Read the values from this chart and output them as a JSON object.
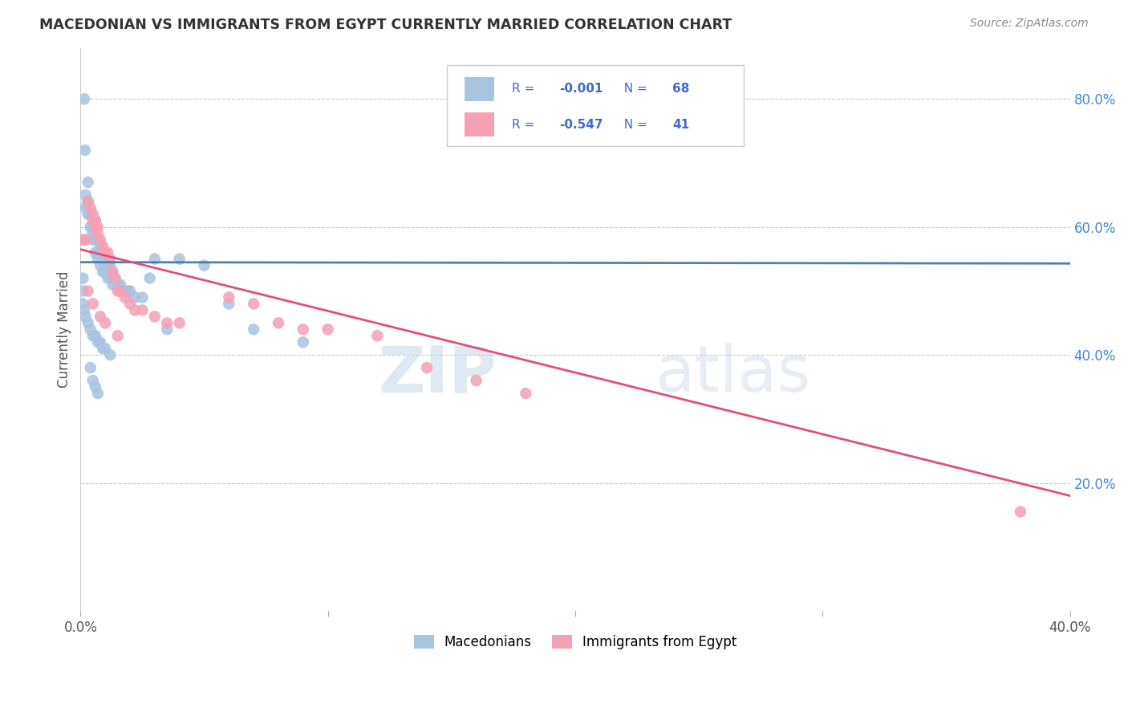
{
  "title": "MACEDONIAN VS IMMIGRANTS FROM EGYPT CURRENTLY MARRIED CORRELATION CHART",
  "source": "Source: ZipAtlas.com",
  "ylabel": "Currently Married",
  "xlim": [
    0.0,
    0.4
  ],
  "ylim": [
    0.0,
    0.88
  ],
  "xtick_pos": [
    0.0,
    0.1,
    0.2,
    0.3,
    0.4
  ],
  "xtick_labels": [
    "0.0%",
    "",
    "",
    "",
    "40.0%"
  ],
  "ytick_positions_right": [
    0.2,
    0.4,
    0.6,
    0.8
  ],
  "ytick_labels_right": [
    "20.0%",
    "40.0%",
    "60.0%",
    "80.0%"
  ],
  "blue_color": "#a8c4e0",
  "pink_color": "#f4a0b5",
  "blue_line_color": "#4a80b8",
  "pink_line_color": "#e05075",
  "legend_label1": "Macedonians",
  "legend_label2": "Immigrants from Egypt",
  "watermark": "ZIPatlas",
  "watermark_color": "#c8d8ea",
  "blue_R": "-0.001",
  "blue_N": "68",
  "pink_R": "-0.547",
  "pink_N": "41",
  "blue_x": [
    0.0015,
    0.0018,
    0.002,
    0.002,
    0.003,
    0.003,
    0.003,
    0.004,
    0.004,
    0.005,
    0.005,
    0.005,
    0.006,
    0.006,
    0.006,
    0.006,
    0.007,
    0.007,
    0.007,
    0.008,
    0.008,
    0.008,
    0.009,
    0.009,
    0.01,
    0.01,
    0.01,
    0.011,
    0.011,
    0.012,
    0.012,
    0.013,
    0.013,
    0.014,
    0.015,
    0.016,
    0.017,
    0.018,
    0.019,
    0.02,
    0.022,
    0.025,
    0.028,
    0.03,
    0.035,
    0.04,
    0.05,
    0.06,
    0.07,
    0.09,
    0.001,
    0.001,
    0.001,
    0.0015,
    0.002,
    0.003,
    0.004,
    0.005,
    0.006,
    0.007,
    0.008,
    0.009,
    0.01,
    0.012,
    0.004,
    0.005,
    0.006,
    0.007
  ],
  "blue_y": [
    0.8,
    0.72,
    0.65,
    0.63,
    0.67,
    0.64,
    0.62,
    0.62,
    0.6,
    0.6,
    0.59,
    0.58,
    0.61,
    0.6,
    0.58,
    0.56,
    0.58,
    0.56,
    0.55,
    0.57,
    0.56,
    0.54,
    0.55,
    0.53,
    0.55,
    0.54,
    0.53,
    0.54,
    0.52,
    0.54,
    0.52,
    0.53,
    0.51,
    0.52,
    0.51,
    0.51,
    0.5,
    0.5,
    0.5,
    0.5,
    0.49,
    0.49,
    0.52,
    0.55,
    0.44,
    0.55,
    0.54,
    0.48,
    0.44,
    0.42,
    0.52,
    0.5,
    0.48,
    0.47,
    0.46,
    0.45,
    0.44,
    0.43,
    0.43,
    0.42,
    0.42,
    0.41,
    0.41,
    0.4,
    0.38,
    0.36,
    0.35,
    0.34
  ],
  "pink_x": [
    0.001,
    0.002,
    0.003,
    0.004,
    0.005,
    0.005,
    0.006,
    0.006,
    0.007,
    0.007,
    0.008,
    0.009,
    0.01,
    0.011,
    0.012,
    0.013,
    0.014,
    0.015,
    0.016,
    0.018,
    0.02,
    0.022,
    0.025,
    0.03,
    0.035,
    0.04,
    0.06,
    0.07,
    0.08,
    0.09,
    0.1,
    0.12,
    0.14,
    0.16,
    0.18,
    0.003,
    0.005,
    0.008,
    0.01,
    0.015,
    0.38
  ],
  "pink_y": [
    0.58,
    0.58,
    0.64,
    0.63,
    0.62,
    0.61,
    0.61,
    0.6,
    0.6,
    0.59,
    0.58,
    0.57,
    0.56,
    0.56,
    0.55,
    0.53,
    0.52,
    0.5,
    0.5,
    0.49,
    0.48,
    0.47,
    0.47,
    0.46,
    0.45,
    0.45,
    0.49,
    0.48,
    0.45,
    0.44,
    0.44,
    0.43,
    0.38,
    0.36,
    0.34,
    0.5,
    0.48,
    0.46,
    0.45,
    0.43,
    0.155
  ]
}
